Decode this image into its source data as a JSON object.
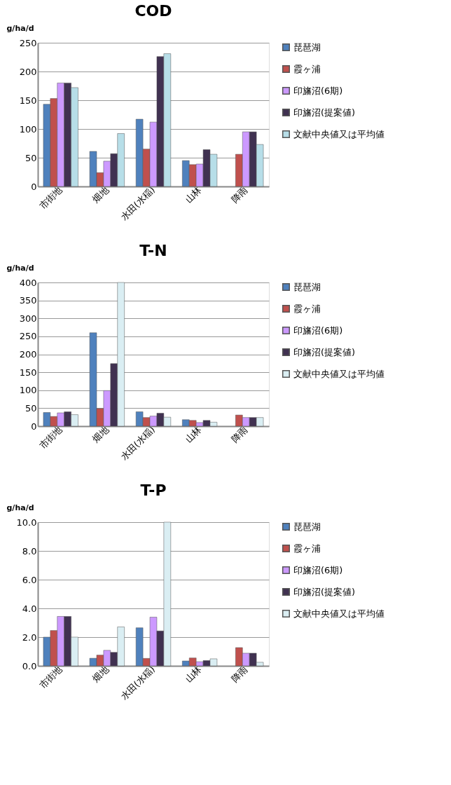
{
  "chart_data": [
    {
      "type": "bar",
      "title": "COD",
      "ylabel": "g/ha/d",
      "categories": [
        "市街地",
        "畑地",
        "水田(水稲)",
        "山林",
        "降雨"
      ],
      "series": [
        {
          "name": "琵琶湖",
          "color": "#4f81bd",
          "values": [
            143,
            61,
            117,
            45,
            null
          ]
        },
        {
          "name": "霞ヶ浦",
          "color": "#c0504d",
          "values": [
            153,
            24,
            65,
            38,
            56
          ]
        },
        {
          "name": "印旛沼(6期)",
          "color": "#cc99ff",
          "values": [
            180,
            44,
            112,
            39,
            95
          ]
        },
        {
          "name": "印旛沼(提案値)",
          "color": "#403151",
          "values": [
            180,
            57,
            226,
            64,
            95
          ]
        },
        {
          "name": "文献中央値又は平均値",
          "color": "#b7dee8",
          "values": [
            172,
            92,
            231,
            56,
            73
          ]
        }
      ],
      "ylim": [
        0,
        250
      ],
      "yticks": [
        0,
        50,
        100,
        150,
        200,
        250
      ],
      "grid": "y",
      "legend": "right"
    },
    {
      "type": "bar",
      "title": "T-N",
      "ylabel": "g/ha/d",
      "categories": [
        "市街地",
        "畑地",
        "水田(水稲)",
        "山林",
        "降雨"
      ],
      "series": [
        {
          "name": "琵琶湖",
          "color": "#4f81bd",
          "values": [
            38,
            260,
            40,
            18,
            null
          ]
        },
        {
          "name": "霞ヶ浦",
          "color": "#c0504d",
          "values": [
            27,
            49,
            24,
            16,
            31
          ]
        },
        {
          "name": "印旛沼(6期)",
          "color": "#cc99ff",
          "values": [
            37,
            99,
            28,
            10,
            24
          ]
        },
        {
          "name": "印旛沼(提案値)",
          "color": "#403151",
          "values": [
            40,
            174,
            36,
            16,
            24
          ]
        },
        {
          "name": "文献中央値又は平均値",
          "color": "#daeef3",
          "values": [
            32,
            400,
            25,
            11,
            24
          ]
        }
      ],
      "ylim": [
        0,
        400
      ],
      "yticks": [
        0,
        50,
        100,
        150,
        200,
        250,
        300,
        350,
        400
      ],
      "grid": "y",
      "legend": "right"
    },
    {
      "type": "bar",
      "title": "T-P",
      "ylabel": "g/ha/d",
      "categories": [
        "市街地",
        "畑地",
        "水田(水稲)",
        "山林",
        "降雨"
      ],
      "series": [
        {
          "name": "琵琶湖",
          "color": "#4f81bd",
          "values": [
            2.0,
            0.53,
            2.65,
            0.34,
            null
          ]
        },
        {
          "name": "霞ヶ浦",
          "color": "#c0504d",
          "values": [
            2.46,
            0.75,
            0.52,
            0.55,
            1.27
          ]
        },
        {
          "name": "印旛沼(6期)",
          "color": "#cc99ff",
          "values": [
            3.44,
            1.08,
            3.39,
            0.29,
            0.88
          ]
        },
        {
          "name": "印旛沼(提案値)",
          "color": "#403151",
          "values": [
            3.44,
            0.94,
            2.43,
            0.37,
            0.88
          ]
        },
        {
          "name": "文献中央値又は平均値",
          "color": "#daeef3",
          "values": [
            2.0,
            2.71,
            10.0,
            0.49,
            0.25
          ]
        }
      ],
      "ylim": [
        0,
        10
      ],
      "yticks": [
        {
          "value": 0,
          "label": "0.0"
        },
        {
          "value": 2,
          "label": "2.0"
        },
        {
          "value": 4,
          "label": "4.0"
        },
        {
          "value": 6,
          "label": "6.0"
        },
        {
          "value": 8,
          "label": "8.0"
        },
        {
          "value": 10,
          "label": "10.0"
        }
      ],
      "grid": "y",
      "legend": "right"
    }
  ]
}
